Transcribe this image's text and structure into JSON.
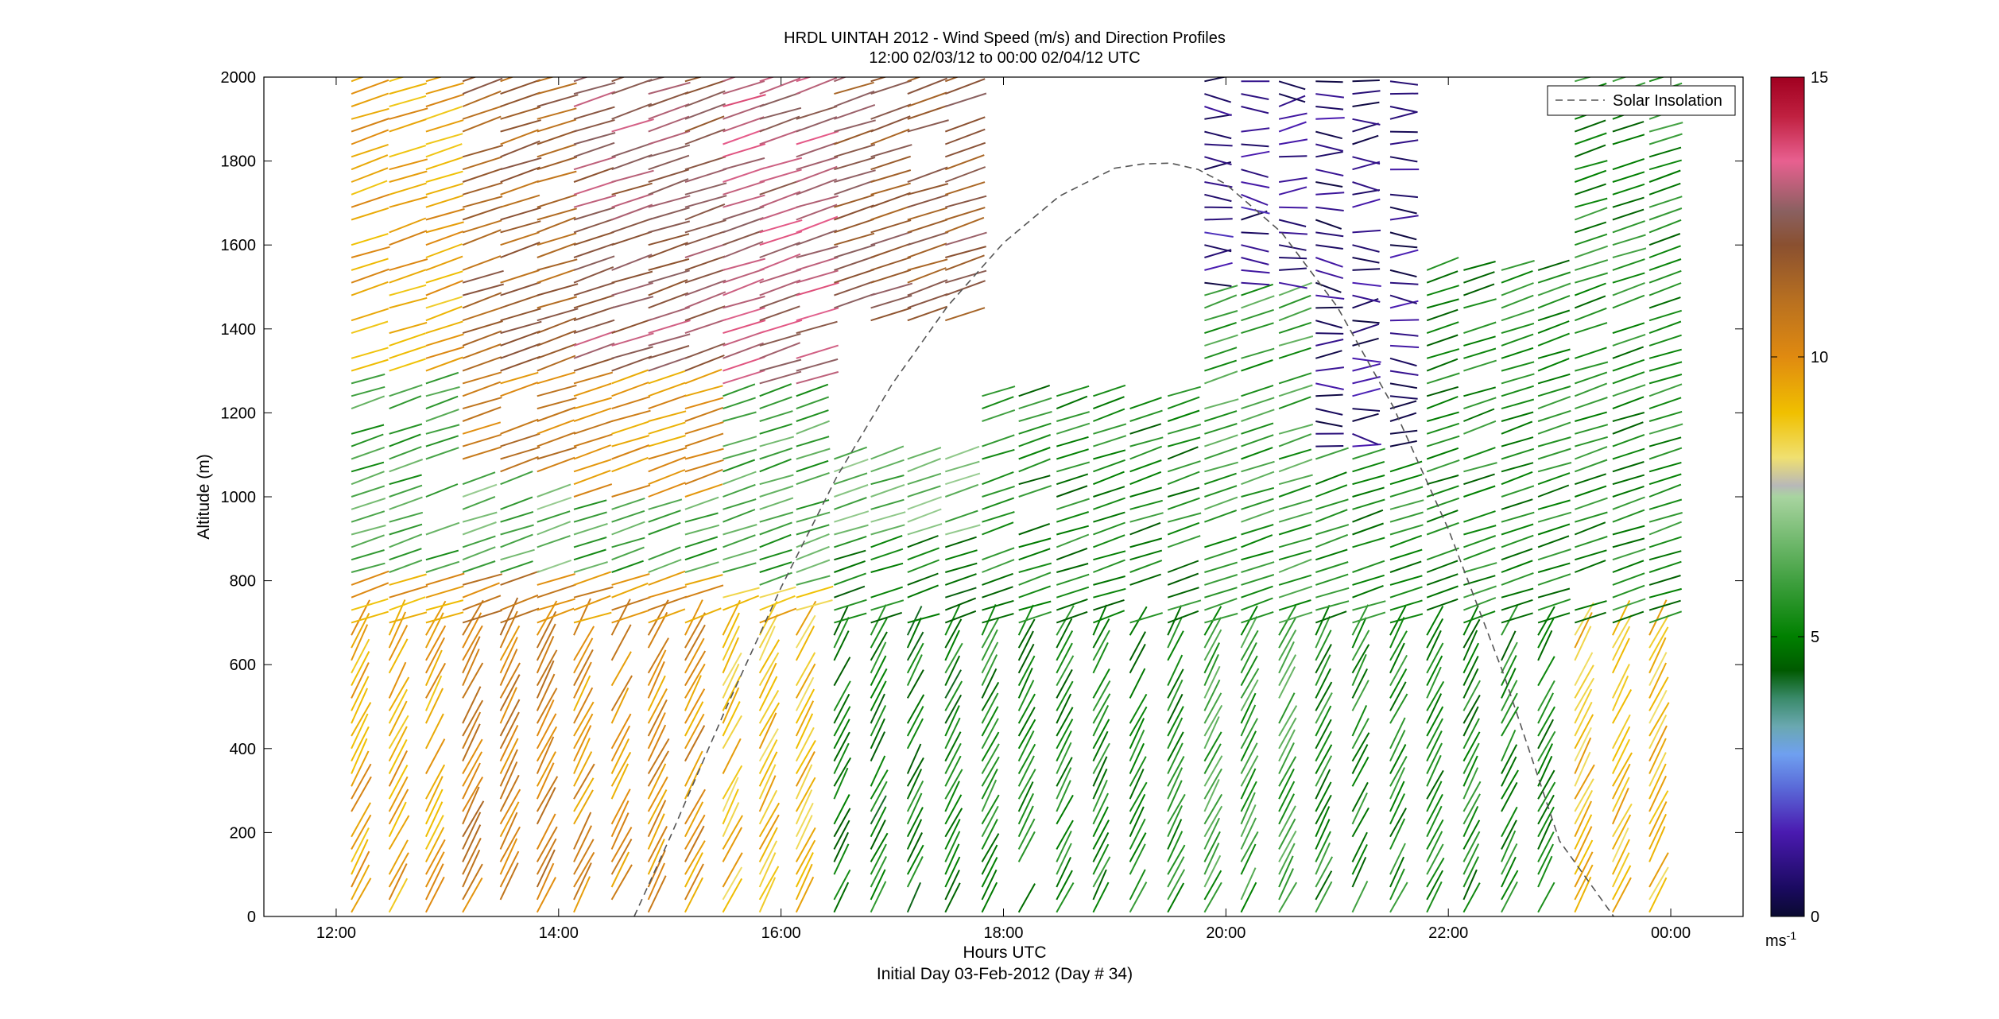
{
  "chart_data": {
    "type": "wind-barb-profile",
    "title": "HRDL UINTAH 2012 - Wind Speed (m/s) and Direction Profiles",
    "subtitle": "12:00 02/03/12 to 00:00 02/04/12  UTC",
    "xlabel": "Hours UTC",
    "xlabel2": "Initial Day 03-Feb-2012 (Day # 34)",
    "ylabel": "Altitude (m)",
    "xlim": [
      11.35,
      24.65
    ],
    "ylim": [
      0,
      2000
    ],
    "xticks": [
      12,
      14,
      16,
      18,
      20,
      22,
      24
    ],
    "xtick_labels": [
      "12:00",
      "14:00",
      "16:00",
      "18:00",
      "20:00",
      "22:00",
      "00:00"
    ],
    "yticks": [
      0,
      200,
      400,
      600,
      800,
      1000,
      1200,
      1400,
      1600,
      1800,
      2000
    ],
    "ytick_labels": [
      "0",
      "200",
      "400",
      "600",
      "800",
      "1000",
      "1200",
      "1400",
      "1600",
      "1800",
      "2000"
    ],
    "legend": {
      "entries": [
        "Solar Insolation"
      ],
      "placement": "top-right",
      "line_style": "dashed",
      "color": "#555555"
    },
    "colorbar": {
      "min": 0,
      "max": 15,
      "ticks": [
        0,
        5,
        10,
        15
      ],
      "tick_labels": [
        "0",
        "5",
        "10",
        "15"
      ],
      "unit_label": "ms",
      "unit_exponent": "-1",
      "colors": [
        [
          0,
          "#0a0a30"
        ],
        [
          0.5,
          "#1a0a60"
        ],
        [
          1.5,
          "#4a1ab0"
        ],
        [
          2.3,
          "#5a6ad8"
        ],
        [
          2.9,
          "#6fa0f0"
        ],
        [
          3.4,
          "#6aa8b0"
        ],
        [
          3.9,
          "#3a8a6a"
        ],
        [
          4.4,
          "#005a00"
        ],
        [
          5,
          "#008000"
        ],
        [
          6,
          "#40a040"
        ],
        [
          7.5,
          "#a8d4a0"
        ],
        [
          7.7,
          "#b8b8b8"
        ],
        [
          8.2,
          "#f0e070"
        ],
        [
          9,
          "#f0c000"
        ],
        [
          10,
          "#e08a10"
        ],
        [
          11,
          "#b87020"
        ],
        [
          12,
          "#8a5030"
        ],
        [
          12.6,
          "#8a6060"
        ],
        [
          13.5,
          "#e86090"
        ],
        [
          14.3,
          "#c02040"
        ],
        [
          15,
          "#a00020"
        ]
      ]
    },
    "solar_insolation": {
      "x": [
        14.68,
        15.0,
        15.5,
        16.0,
        16.5,
        17.0,
        17.5,
        18.0,
        18.5,
        19.0,
        19.25,
        19.5,
        19.75,
        20.0,
        20.5,
        21.0,
        21.5,
        22.0,
        22.5,
        23.0,
        23.5,
        24.0,
        24.25
      ],
      "y": [
        0,
        187,
        493,
        784,
        1047,
        1269,
        1455,
        1605,
        1716,
        1783,
        1793,
        1795,
        1780,
        1745,
        1630,
        1453,
        1217,
        923,
        575,
        180,
        -5,
        -5,
        -5
      ]
    },
    "wind_profiles": {
      "times": [
        12.13,
        12.47,
        12.8,
        13.13,
        13.47,
        13.8,
        14.13,
        14.47,
        14.8,
        15.13,
        15.47,
        15.8,
        16.13,
        16.47,
        16.8,
        17.13,
        17.47,
        17.8,
        18.13,
        18.47,
        18.8,
        19.13,
        19.47,
        19.8,
        20.13,
        20.47,
        20.8,
        21.13,
        21.47,
        21.8,
        22.13,
        22.47,
        22.8,
        23.13,
        23.47,
        23.8
      ],
      "gate_spacing_m": 30,
      "barb_orientation": "line segments tilted up-right, length scaled by speed, colored by speed",
      "note": "values estimated from colors of the individual barbs",
      "speed_bands": [
        {
          "t_from": 12.0,
          "t_to": 13.0,
          "layers": [
            [
              0,
              800,
              9.5
            ],
            [
              800,
              1300,
              6.0
            ],
            [
              1300,
              2000,
              9.5
            ]
          ]
        },
        {
          "t_from": 13.0,
          "t_to": 14.0,
          "layers": [
            [
              0,
              800,
              10.5
            ],
            [
              800,
              1050,
              6.5
            ],
            [
              1050,
              1300,
              10.5
            ],
            [
              1300,
              2000,
              11.5
            ]
          ]
        },
        {
          "t_from": 14.0,
          "t_to": 15.2,
          "layers": [
            [
              0,
              800,
              10.0
            ],
            [
              800,
              1000,
              6.0
            ],
            [
              1000,
              1300,
              10.0
            ],
            [
              1300,
              2000,
              12.5
            ]
          ]
        },
        {
          "t_from": 15.2,
          "t_to": 16.2,
          "layers": [
            [
              0,
              780,
              9.0
            ],
            [
              780,
              1250,
              6.0
            ],
            [
              1250,
              2000,
              13.0
            ]
          ]
        },
        {
          "t_from": 16.2,
          "t_to": 17.6,
          "layers": [
            [
              0,
              900,
              5.0
            ],
            [
              900,
              1100,
              6.5
            ],
            [
              1400,
              2000,
              12.0
            ]
          ]
        },
        {
          "t_from": 17.6,
          "t_to": 19.6,
          "layers": [
            [
              0,
              1250,
              5.2
            ]
          ]
        },
        {
          "t_from": 19.6,
          "t_to": 20.8,
          "layers": [
            [
              0,
              1500,
              5.8
            ],
            [
              1500,
              2000,
              1.0
            ]
          ]
        },
        {
          "t_from": 20.8,
          "t_to": 21.8,
          "layers": [
            [
              0,
              1100,
              5.3
            ],
            [
              1100,
              2000,
              0.8
            ]
          ]
        },
        {
          "t_from": 21.8,
          "t_to": 23.0,
          "layers": [
            [
              0,
              1550,
              5.2
            ]
          ]
        },
        {
          "t_from": 23.0,
          "t_to": 24.0,
          "layers": [
            [
              0,
              700,
              9.0
            ],
            [
              700,
              2000,
              5.3
            ]
          ]
        }
      ]
    }
  }
}
